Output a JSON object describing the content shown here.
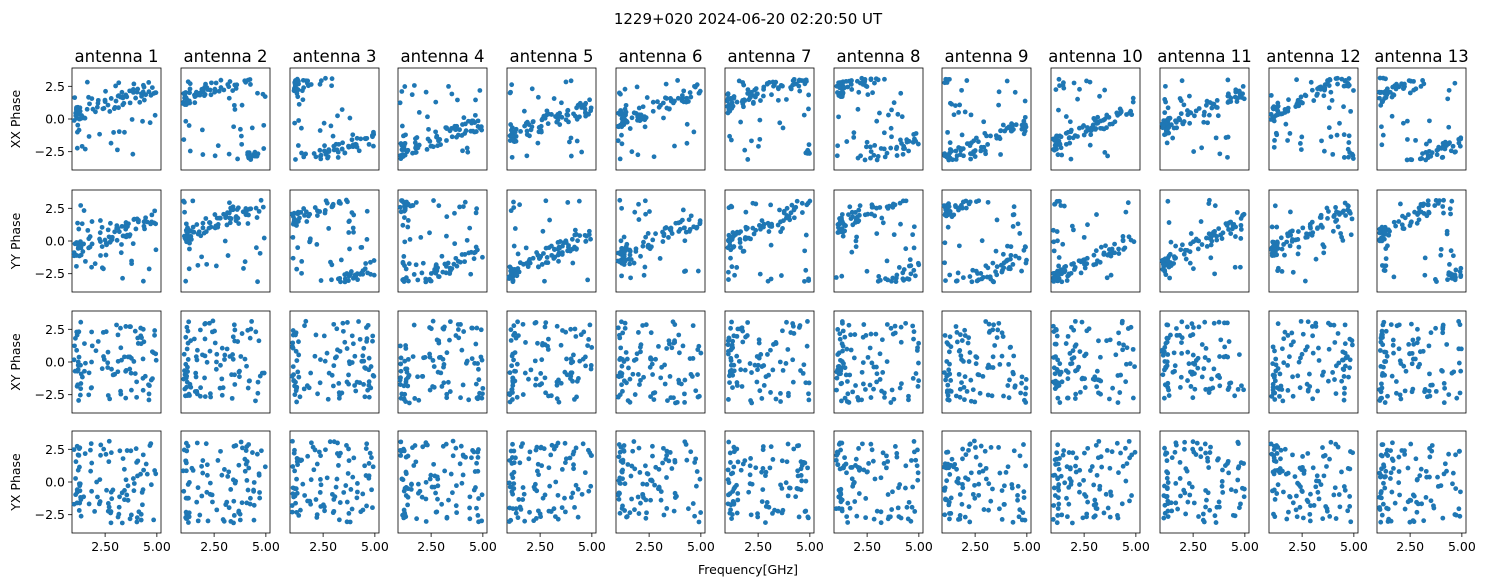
{
  "chart_data": {
    "type": "scatter",
    "title": "1229+020 2024-06-20 02:20:50 UT",
    "xlabel": "Frequency[GHz]",
    "columns": [
      "antenna 1",
      "antenna 2",
      "antenna 3",
      "antenna 4",
      "antenna 5",
      "antenna 6",
      "antenna 7",
      "antenna 8",
      "antenna 9",
      "antenna 10",
      "antenna 11",
      "antenna 12",
      "antenna 13"
    ],
    "rows": [
      "XX Phase",
      "YY Phase",
      "XY Phase",
      "YX Phase"
    ],
    "xlim": [
      0.9,
      5.2
    ],
    "ylim": [
      -3.9,
      3.9
    ],
    "xticks": [
      2.5,
      5.0
    ],
    "xtick_labels": [
      "2.50",
      "5.00"
    ],
    "xtick_labels_minor": [],
    "yticks": [
      2.5,
      0.0,
      -2.5
    ],
    "ytick_labels": [
      "2.5",
      "0.0",
      "−2.5"
    ],
    "grid": false,
    "marker_color": "#1f77b4",
    "points_per_panel": 100,
    "freq_range": [
      1.0,
      5.0
    ],
    "phase_range": [
      -3.1416,
      3.1416
    ]
  }
}
